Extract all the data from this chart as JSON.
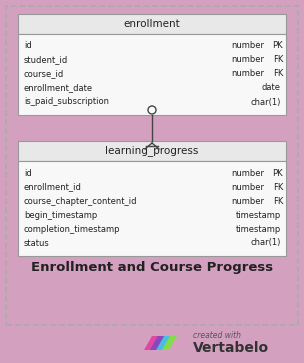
{
  "bg_color": "#d4a0c0",
  "bg_border_color": "#aaaaaa",
  "table_header_bg": "#e8e8e8",
  "table_body_bg": "#f8f8f8",
  "table_border_color": "#999999",
  "title_text": "Enrollment and Course Progress",
  "title_fontsize": 9.5,
  "enrollment_table": {
    "name": "enrollment",
    "fields": [
      {
        "name": "id",
        "type": "number",
        "key": "PK"
      },
      {
        "name": "student_id",
        "type": "number",
        "key": "FK"
      },
      {
        "name": "course_id",
        "type": "number",
        "key": "FK"
      },
      {
        "name": "enrollment_date",
        "type": "date",
        "key": ""
      },
      {
        "name": "is_paid_subscription",
        "type": "char(1)",
        "key": ""
      }
    ]
  },
  "learning_table": {
    "name": "learning_progress",
    "fields": [
      {
        "name": "id",
        "type": "number",
        "key": "PK"
      },
      {
        "name": "enrollment_id",
        "type": "number",
        "key": "FK"
      },
      {
        "name": "course_chapter_content_id",
        "type": "number",
        "key": "FK"
      },
      {
        "name": "begin_timestamp",
        "type": "timestamp",
        "key": ""
      },
      {
        "name": "completion_timestamp",
        "type": "timestamp",
        "key": ""
      },
      {
        "name": "status",
        "type": "char(1)",
        "key": ""
      }
    ]
  },
  "connector_color": "#444444",
  "text_color": "#222222",
  "footer_text": "created with",
  "footer_brand": "Vertabelo"
}
